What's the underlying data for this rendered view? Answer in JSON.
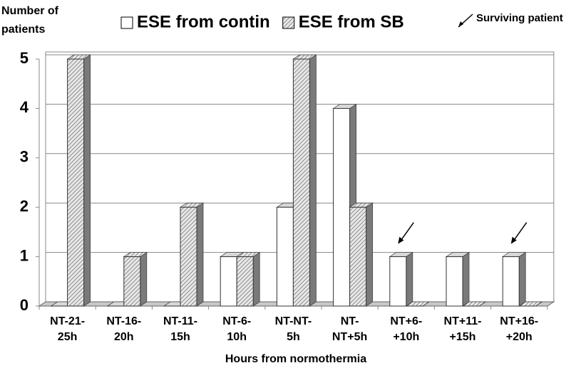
{
  "chart_data": {
    "type": "bar3d",
    "y_label": [
      "Number of",
      "patients"
    ],
    "x_label": "Hours from normothermia",
    "annotation": "Surviving patient",
    "categories": [
      [
        "NT-21-",
        "25h"
      ],
      [
        "NT-16-",
        "20h"
      ],
      [
        "NT-11-",
        "15h"
      ],
      [
        "NT-6-",
        "10h"
      ],
      [
        "NT-NT-",
        "5h"
      ],
      [
        "NT-",
        "NT+5h"
      ],
      [
        "NT+6-",
        "+10h"
      ],
      [
        "NT+11-",
        "+15h"
      ],
      [
        "NT+16-",
        "+20h"
      ]
    ],
    "series": [
      {
        "name": "ESE from contin",
        "color": "#ffffff",
        "values": [
          0,
          0,
          0,
          1,
          2,
          4,
          1,
          1,
          1
        ]
      },
      {
        "name": "ESE from SB",
        "color": "#8c8c8c",
        "hatched": true,
        "values": [
          5,
          1,
          2,
          1,
          5,
          2,
          0,
          0,
          0
        ]
      }
    ],
    "ylim": [
      0,
      5
    ],
    "yticks": [
      0,
      1,
      2,
      3,
      4,
      5
    ],
    "grid": true
  }
}
